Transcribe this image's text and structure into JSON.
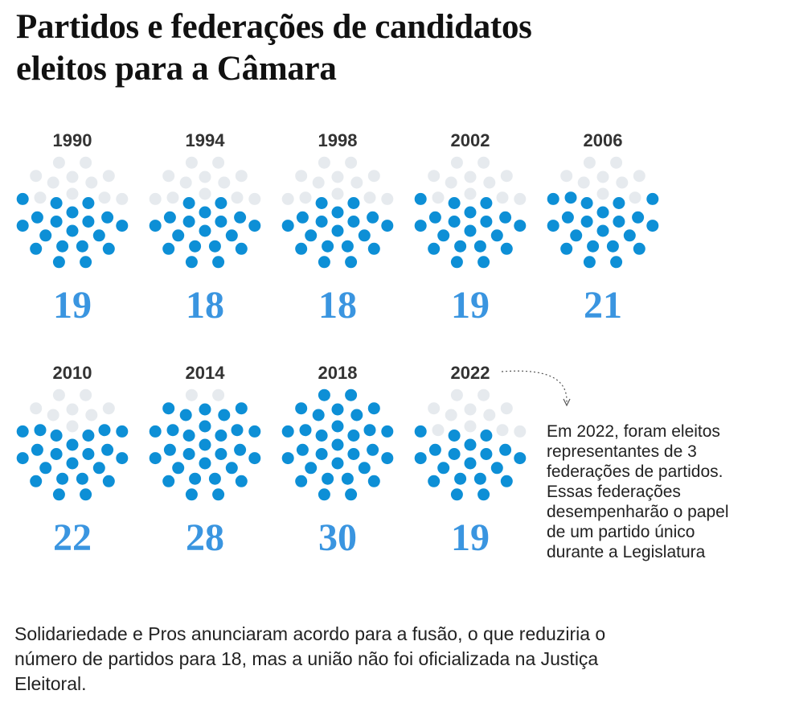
{
  "title": {
    "line1": "Partidos e federações de candidatos",
    "line2": "eleitos para a Câmara"
  },
  "colors": {
    "filled": "#0d8fd6",
    "empty": "#e6eaee",
    "count_text": "#3a95e0"
  },
  "chart_data": {
    "type": "dot-grid",
    "title": "Partidos e federações de candidatos eleitos para a Câmara",
    "unit": "partidos/federações",
    "total_dots_per_panel": 30,
    "categories": [
      "1990",
      "1994",
      "1998",
      "2002",
      "2006",
      "2010",
      "2014",
      "2018",
      "2022"
    ],
    "values": [
      19,
      18,
      18,
      19,
      21,
      22,
      28,
      30,
      19
    ],
    "panels": [
      {
        "year": "1990",
        "count": "19",
        "value": 19
      },
      {
        "year": "1994",
        "count": "18",
        "value": 18
      },
      {
        "year": "1998",
        "count": "18",
        "value": 18
      },
      {
        "year": "2002",
        "count": "19",
        "value": 19
      },
      {
        "year": "2006",
        "count": "21",
        "value": 21
      },
      {
        "year": "2010",
        "count": "22",
        "value": 22
      },
      {
        "year": "2014",
        "count": "28",
        "value": 28
      },
      {
        "year": "2018",
        "count": "30",
        "value": 30
      },
      {
        "year": "2022",
        "count": "19",
        "value": 19
      }
    ]
  },
  "annotation": {
    "lines": [
      "Em 2022, foram eleitos",
      "representantes de 3",
      "federações de partidos.",
      "Essas federações",
      "desempenharão o papel",
      "de um partido único",
      "durante a Legislatura"
    ]
  },
  "footnote": {
    "lines": [
      "Solidariedade e Pros anunciaram acordo para a fusão, o que reduziria o",
      "número de partidos para 18, mas a união não foi oficializada na Justiça",
      "Eleitoral."
    ]
  }
}
